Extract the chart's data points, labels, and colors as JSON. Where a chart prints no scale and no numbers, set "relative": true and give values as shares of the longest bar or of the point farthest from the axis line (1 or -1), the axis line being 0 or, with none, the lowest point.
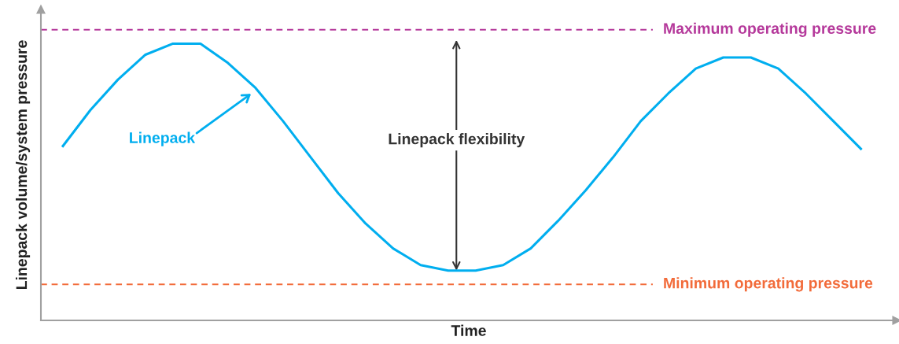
{
  "chart_data": {
    "type": "line",
    "relative": true,
    "xlabel": "Time",
    "ylabel": "Linepack volume/system pressure",
    "categories": [
      null,
      null,
      null,
      null,
      null,
      null,
      null,
      null,
      null,
      null,
      null,
      null,
      null,
      null,
      null,
      null,
      null,
      null,
      null,
      null,
      null,
      null,
      null,
      null,
      null,
      null,
      null,
      null,
      null,
      null
    ],
    "series": [
      {
        "name": "Linepack",
        "color": "#00aeef",
        "values": [
          0.63,
          0.76,
          0.87,
          0.96,
          1.0,
          1.0,
          0.93,
          0.84,
          0.72,
          0.59,
          0.46,
          0.35,
          0.26,
          0.2,
          0.18,
          0.18,
          0.2,
          0.26,
          0.36,
          0.47,
          0.59,
          0.72,
          0.82,
          0.91,
          0.95,
          0.95,
          0.91,
          0.82,
          0.72,
          0.62
        ]
      }
    ],
    "ref_lines": [
      {
        "axis": "y",
        "value": 1.05,
        "label": "Maximum operating pressure",
        "color": "#b5399b",
        "line_style": "dashed"
      },
      {
        "axis": "y",
        "value": 0.13,
        "label": "Minimum operating pressure",
        "color": "#f26b3a",
        "line_style": "dashed"
      }
    ],
    "annotations": [
      "Linepack flexibility"
    ],
    "legend": false,
    "marker": "none",
    "line_style": "solid"
  }
}
